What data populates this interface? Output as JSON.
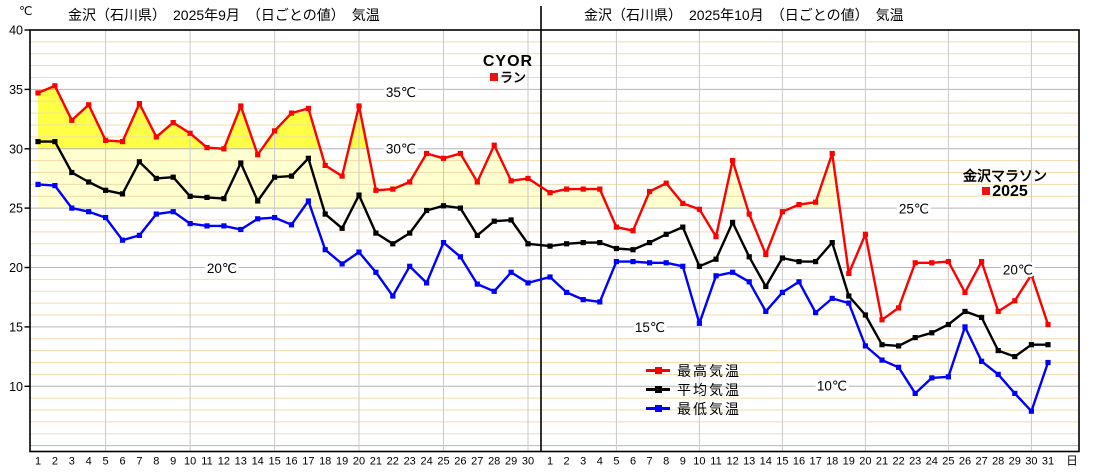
{
  "legend": {
    "items": [
      {
        "label": "最高気温",
        "color": "#ff0000"
      },
      {
        "label": "平均気温",
        "color": "#000000"
      },
      {
        "label": "最低気温",
        "color": "#0000ff"
      }
    ]
  },
  "annotations": {
    "cyor": {
      "line1": "CYOR",
      "line2": "ラン"
    },
    "marathon": {
      "line1": "金沢マラソン",
      "line2": "2025"
    },
    "red_marker_color": "#ee1111",
    "gridline_labels": [
      {
        "id": "35c",
        "text": "35℃"
      },
      {
        "id": "30c",
        "text": "30℃"
      },
      {
        "id": "20c-sep",
        "text": "20℃"
      },
      {
        "id": "15c",
        "text": "15℃"
      },
      {
        "id": "10c",
        "text": "10℃"
      },
      {
        "id": "25c-oct",
        "text": "25℃"
      },
      {
        "id": "20c-oct",
        "text": "20℃"
      }
    ]
  },
  "chart_data": {
    "type": "line",
    "unit": "℃",
    "day_axis_suffix": "日",
    "ylim": [
      4.5,
      40
    ],
    "y_ticks": [
      40,
      35,
      30,
      25,
      20,
      15,
      10
    ],
    "grid": {
      "minor_color": "#f0ddab",
      "major_color": "#b6b6b6",
      "vertical_color": "#c9c9c9",
      "vertical_days": [
        5,
        10,
        15,
        20,
        25,
        30
      ]
    },
    "band_fills": [
      {
        "threshold": 30,
        "color": "#ffff45"
      },
      {
        "threshold": 25,
        "color": "#ffffd0"
      }
    ],
    "panels": [
      {
        "title": "金沢（石川県）　2025年9月　（日ごとの値）　気温",
        "categories": [
          1,
          2,
          3,
          4,
          5,
          6,
          7,
          8,
          9,
          10,
          11,
          12,
          13,
          14,
          15,
          16,
          17,
          18,
          19,
          20,
          21,
          22,
          23,
          24,
          25,
          26,
          27,
          28,
          29,
          30
        ],
        "series": [
          {
            "name": "最高気温",
            "color": "#ff0000",
            "values": [
              34.7,
              35.3,
              32.4,
              33.7,
              30.7,
              30.6,
              33.8,
              31.0,
              32.2,
              31.3,
              30.1,
              30.0,
              33.6,
              29.5,
              31.5,
              33.0,
              33.4,
              28.6,
              27.7,
              33.6,
              26.5,
              26.6,
              27.2,
              29.6,
              29.2,
              29.6,
              27.2,
              30.3,
              27.3,
              27.5
            ]
          },
          {
            "name": "平均気温",
            "color": "#000000",
            "values": [
              30.6,
              30.6,
              28.0,
              27.2,
              26.5,
              26.2,
              28.9,
              27.5,
              27.6,
              26.0,
              25.9,
              25.8,
              28.8,
              25.6,
              27.6,
              27.7,
              29.2,
              24.5,
              23.3,
              26.1,
              22.9,
              22.0,
              22.9,
              24.8,
              25.2,
              25.0,
              22.7,
              23.9,
              24.0,
              22.0
            ]
          },
          {
            "name": "最低気温",
            "color": "#0000ff",
            "values": [
              27.0,
              26.9,
              25.0,
              24.7,
              24.2,
              22.3,
              22.7,
              24.5,
              24.7,
              23.7,
              23.5,
              23.5,
              23.2,
              24.1,
              24.2,
              23.6,
              25.6,
              21.5,
              20.3,
              21.3,
              19.6,
              17.6,
              20.1,
              18.7,
              22.1,
              20.9,
              18.6,
              18.0,
              19.6,
              18.7
            ]
          }
        ]
      },
      {
        "title": "金沢（石川県）　2025年10月　（日ごとの値）　気温",
        "categories": [
          1,
          2,
          3,
          4,
          5,
          6,
          7,
          8,
          9,
          10,
          11,
          12,
          13,
          14,
          15,
          16,
          17,
          18,
          19,
          20,
          21,
          22,
          23,
          24,
          25,
          26,
          27,
          28,
          29,
          30,
          31
        ],
        "series": [
          {
            "name": "最高気温",
            "color": "#ff0000",
            "values": [
              26.3,
              26.6,
              26.6,
              26.6,
              23.4,
              23.1,
              26.4,
              27.1,
              25.4,
              24.9,
              22.6,
              29.0,
              24.5,
              21.1,
              24.7,
              25.3,
              25.5,
              29.6,
              19.5,
              22.8,
              15.6,
              16.6,
              20.4,
              20.4,
              20.5,
              17.9,
              20.5,
              16.3,
              17.2,
              19.4,
              15.2
            ]
          },
          {
            "name": "平均気温",
            "color": "#000000",
            "values": [
              21.8,
              22.0,
              22.1,
              22.1,
              21.6,
              21.5,
              22.1,
              22.8,
              23.4,
              20.1,
              20.7,
              23.8,
              20.9,
              18.4,
              20.8,
              20.5,
              20.5,
              22.1,
              17.6,
              16.0,
              13.5,
              13.4,
              14.1,
              14.5,
              15.2,
              16.3,
              15.8,
              13.0,
              12.5,
              13.5,
              13.5
            ]
          },
          {
            "name": "最低気温",
            "color": "#0000ff",
            "values": [
              19.2,
              17.9,
              17.3,
              17.1,
              20.5,
              20.5,
              20.4,
              20.4,
              20.1,
              15.3,
              19.3,
              19.6,
              18.8,
              16.3,
              17.9,
              18.8,
              16.2,
              17.4,
              17.0,
              13.4,
              12.2,
              11.6,
              9.4,
              10.7,
              10.8,
              15.0,
              12.1,
              11.0,
              9.4,
              7.9,
              12.0
            ]
          }
        ]
      }
    ]
  }
}
